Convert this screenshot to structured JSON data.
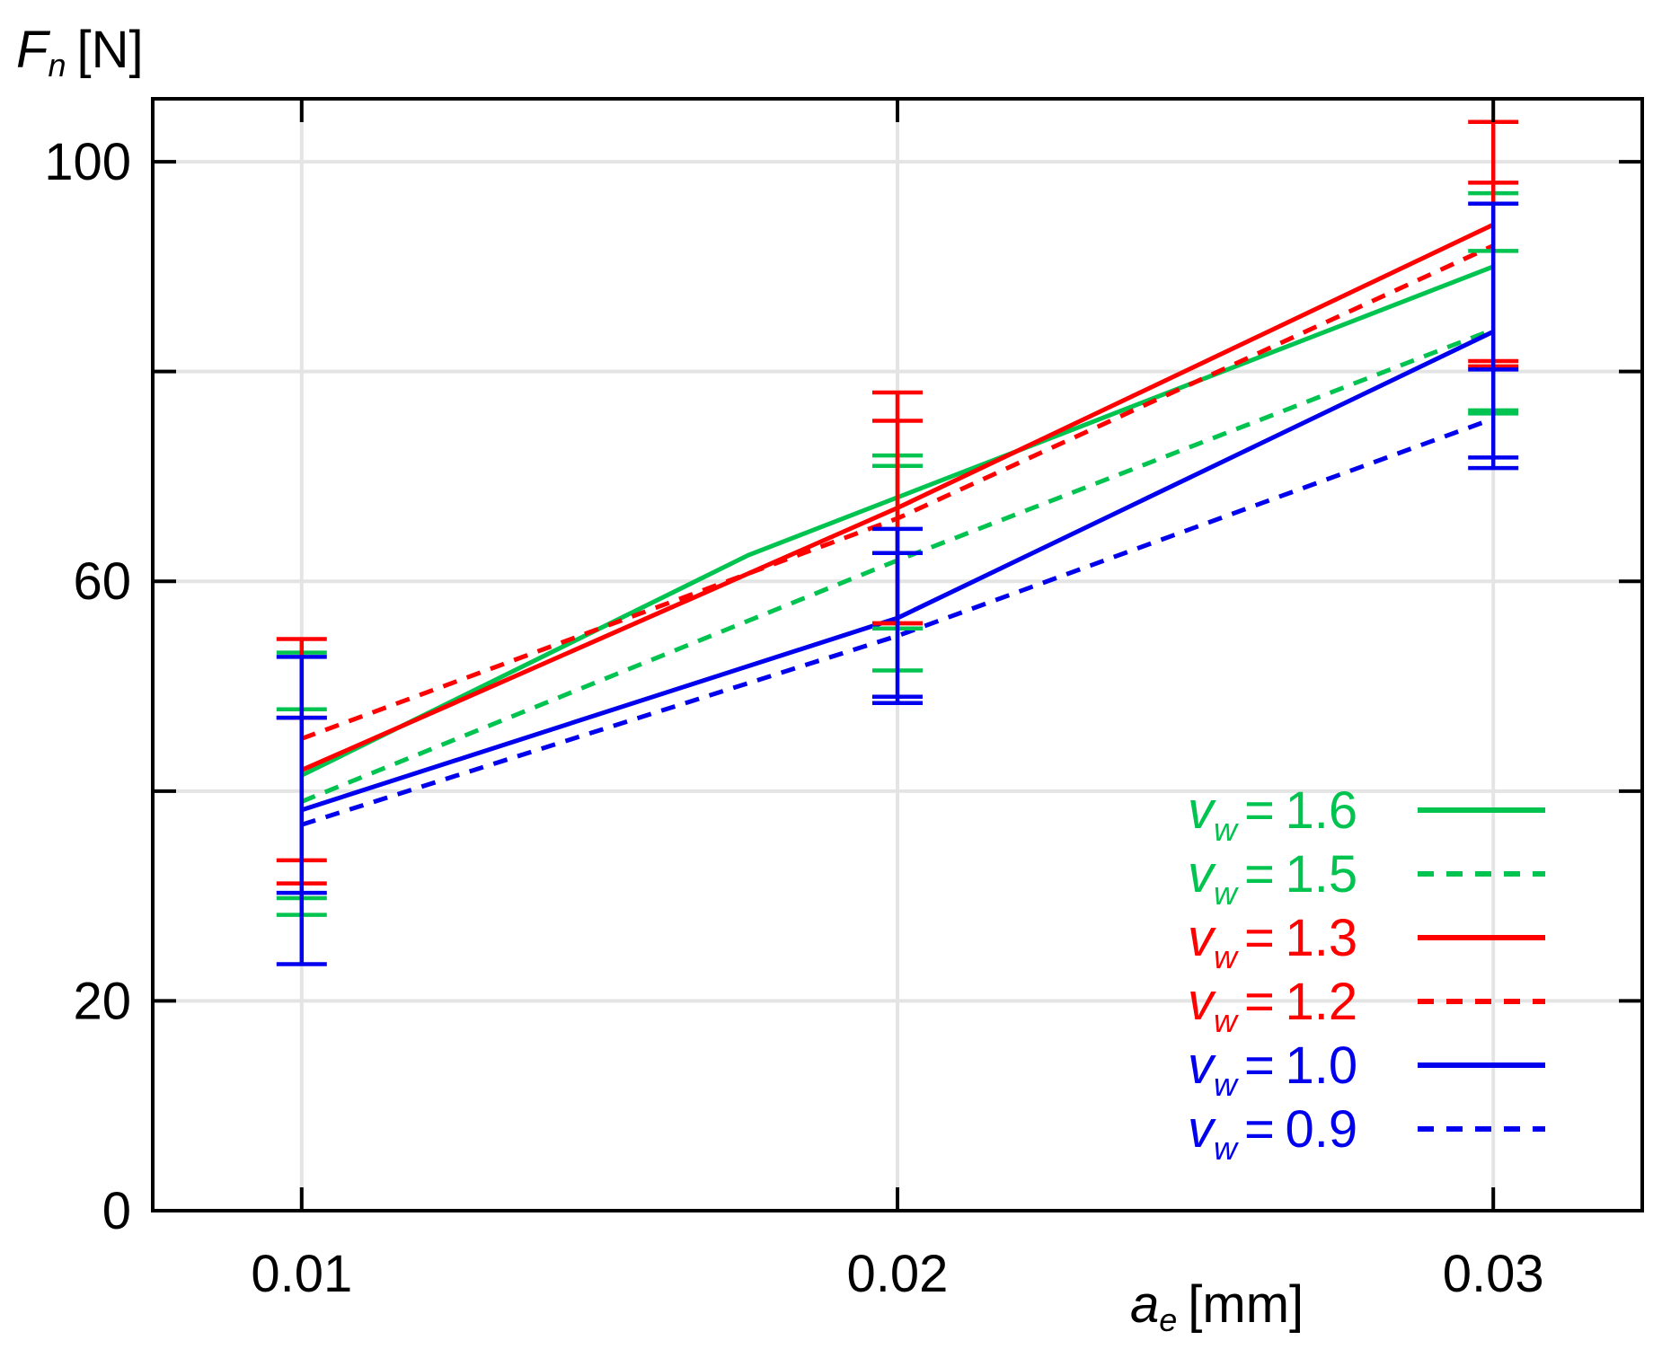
{
  "chart_data": {
    "type": "line",
    "title": "",
    "ylabel": {
      "main": "F",
      "sub": "n",
      "unit": "[N]"
    },
    "xlabel": {
      "main": "a",
      "sub": "e",
      "unit": "[mm]"
    },
    "xlim": [
      0.0075,
      0.0325
    ],
    "ylim": [
      0,
      106
    ],
    "x": [
      0.01,
      0.02,
      0.03
    ],
    "x_ticks": [
      {
        "value": 0.01,
        "label": "0.01"
      },
      {
        "value": 0.02,
        "label": "0.02"
      },
      {
        "value": 0.03,
        "label": "0.03"
      }
    ],
    "y_ticks": [
      {
        "value": 0,
        "label": "0"
      },
      {
        "value": 20,
        "label": "20"
      },
      {
        "value": 40,
        "label": ""
      },
      {
        "value": 60,
        "label": "60"
      },
      {
        "value": 80,
        "label": ""
      },
      {
        "value": 100,
        "label": "100"
      }
    ],
    "grid": true,
    "legend_position": "bottom-right",
    "series": [
      {
        "name": "v_w = 1.6",
        "symbol": "v",
        "sub": "w",
        "value_text": "= 1.6",
        "color": "#00c44f",
        "dashed": false,
        "points": [
          [
            0.01,
            41.5
          ],
          [
            0.0175,
            62.5
          ],
          [
            0.02,
            68.0
          ],
          [
            0.03,
            90.0
          ]
        ],
        "errors": [
          {
            "x": 0.01,
            "lower": 28.2,
            "upper": 53.2,
            "mid": [
              47.8,
              29.8
            ]
          },
          {
            "x": 0.02,
            "lower": 51.5,
            "upper": 72.0,
            "mid": [
              71.0,
              55.5
            ]
          },
          {
            "x": 0.03,
            "lower": 76.0,
            "upper": 97.0,
            "mid": [
              91.5,
              76.3
            ]
          }
        ]
      },
      {
        "name": "v_w = 1.5",
        "symbol": "v",
        "sub": "w",
        "value_text": "= 1.5",
        "color": "#00c44f",
        "dashed": true,
        "points": [
          [
            0.01,
            39.0
          ],
          [
            0.02,
            62.0
          ],
          [
            0.03,
            84.0
          ]
        ],
        "errors": []
      },
      {
        "name": "v_w = 1.3",
        "symbol": "v",
        "sub": "w",
        "value_text": "= 1.3",
        "color": "#ff0000",
        "dashed": false,
        "points": [
          [
            0.01,
            42.0
          ],
          [
            0.02,
            67.0
          ],
          [
            0.03,
            94.0
          ]
        ],
        "errors": [
          {
            "x": 0.01,
            "lower": 31.2,
            "upper": 54.5,
            "mid": [
              47.0,
              33.4
            ]
          },
          {
            "x": 0.02,
            "lower": 56.0,
            "upper": 78.0,
            "mid": [
              75.3,
              56.0
            ]
          },
          {
            "x": 0.03,
            "lower": 80.5,
            "upper": 103.8,
            "mid": [
              98.0,
              81.0
            ]
          }
        ]
      },
      {
        "name": "v_w = 1.2",
        "symbol": "v",
        "sub": "w",
        "value_text": "= 1.2",
        "color": "#ff0000",
        "dashed": true,
        "points": [
          [
            0.01,
            45.0
          ],
          [
            0.02,
            66.0
          ],
          [
            0.03,
            92.0
          ]
        ],
        "errors": []
      },
      {
        "name": "v_w = 1.0",
        "symbol": "v",
        "sub": "w",
        "value_text": "= 1.0",
        "color": "#0000ee",
        "dashed": false,
        "points": [
          [
            0.01,
            38.2
          ],
          [
            0.02,
            56.5
          ],
          [
            0.03,
            83.8
          ]
        ],
        "errors": [
          {
            "x": 0.01,
            "lower": 23.5,
            "upper": 52.8,
            "mid": [
              47.0,
              30.3
            ]
          },
          {
            "x": 0.02,
            "lower": 48.4,
            "upper": 65.0,
            "mid": [
              62.7,
              49.0
            ]
          },
          {
            "x": 0.03,
            "lower": 70.8,
            "upper": 96.0,
            "mid": [
              80.2,
              71.8
            ]
          }
        ]
      },
      {
        "name": "v_w = 0.9",
        "symbol": "v",
        "sub": "w",
        "value_text": "= 0.9",
        "color": "#0000ee",
        "dashed": true,
        "points": [
          [
            0.01,
            36.8
          ],
          [
            0.02,
            54.8
          ],
          [
            0.03,
            75.5
          ]
        ],
        "errors": []
      }
    ]
  }
}
